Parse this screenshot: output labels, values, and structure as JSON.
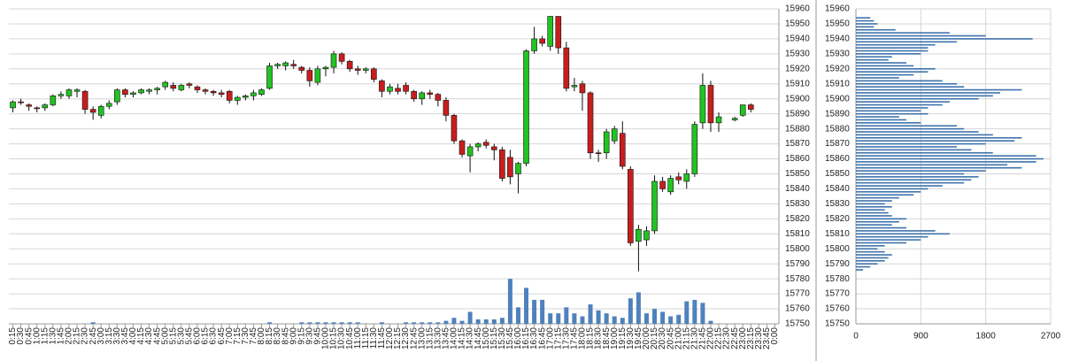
{
  "chart_data": [
    {
      "type": "candlestick",
      "categories": [
        "0:15",
        "0:30",
        "0:45",
        "1:00",
        "1:15",
        "1:30",
        "1:45",
        "2:00",
        "2:15",
        "2:30",
        "2:45",
        "3:00",
        "3:15",
        "3:30",
        "3:45",
        "4:00",
        "4:15",
        "4:30",
        "4:45",
        "5:00",
        "5:15",
        "5:30",
        "5:45",
        "6:00",
        "6:15",
        "6:30",
        "6:45",
        "7:00",
        "7:15",
        "7:30",
        "7:45",
        "8:00",
        "8:15",
        "8:30",
        "8:45",
        "9:00",
        "9:15",
        "9:30",
        "9:45",
        "10:00",
        "10:15",
        "10:30",
        "10:45",
        "11:00",
        "11:15",
        "11:30",
        "11:45",
        "12:00",
        "12:15",
        "12:30",
        "12:45",
        "13:00",
        "13:15",
        "13:30",
        "13:45",
        "14:00",
        "14:15",
        "14:30",
        "14:45",
        "15:00",
        "15:15",
        "15:30",
        "15:45",
        "16:00",
        "16:15",
        "16:30",
        "16:45",
        "17:00",
        "17:15",
        "17:30",
        "17:45",
        "18:00",
        "18:15",
        "18:30",
        "18:45",
        "19:00",
        "19:15",
        "19:30",
        "19:45",
        "20:00",
        "20:15",
        "20:30",
        "20:45",
        "21:00",
        "21:15",
        "21:30",
        "21:45",
        "22:00",
        "22:15",
        "22:30",
        "22:45",
        "23:00",
        "23:15",
        "23:30",
        "23:45",
        "0:00"
      ],
      "open": [
        15894,
        15898,
        15896,
        15894,
        15894,
        15896,
        15902,
        15902,
        15905,
        15905,
        15893,
        15889,
        15895,
        15898,
        15906,
        15903,
        15904,
        15905,
        15906,
        15908,
        15909,
        15906,
        15910,
        15908,
        15906,
        15905,
        15904,
        15905,
        15899,
        15901,
        15902,
        15903,
        15907,
        15922,
        15922,
        15923,
        15921,
        15919,
        15911,
        15920,
        15921,
        15930,
        15925,
        15920,
        15919,
        15920,
        15912,
        15905,
        15907,
        15909,
        15905,
        15900,
        15904,
        15903,
        15899,
        15889,
        15872,
        15862,
        15868,
        15871,
        15868,
        15866,
        15861,
        15850,
        15857,
        15932,
        15940,
        15935,
        15955,
        15934,
        15908,
        15910,
        15904,
        15864,
        15864,
        15872,
        15877,
        15853,
        15805,
        15806,
        15812,
        15845,
        15838,
        15848,
        15845,
        15850,
        15884,
        15909,
        15884,
        null,
        15886,
        15889,
        15896,
        null,
        null,
        null
      ],
      "high": [
        15899,
        15900,
        15897,
        15895,
        15897,
        15903,
        15905,
        15907,
        15907,
        15906,
        15895,
        15896,
        15899,
        15907,
        15907,
        15905,
        15907,
        15907,
        15908,
        15912,
        15911,
        15910,
        15911,
        15909,
        15907,
        15906,
        15906,
        15906,
        15902,
        15903,
        15906,
        15907,
        15924,
        15924,
        15925,
        15926,
        15922,
        15921,
        15922,
        15922,
        15932,
        15931,
        15926,
        15922,
        15921,
        15921,
        15913,
        15910,
        15910,
        15911,
        15906,
        15905,
        15906,
        15904,
        15901,
        15890,
        15873,
        15870,
        15871,
        15873,
        15870,
        15868,
        15866,
        15858,
        15933,
        15948,
        15942,
        15955,
        15955,
        15938,
        15914,
        15912,
        15905,
        15866,
        15880,
        15882,
        15885,
        15855,
        15816,
        15815,
        15849,
        15848,
        15849,
        15851,
        15853,
        15885,
        15917,
        15912,
        15891,
        null,
        15888,
        15896,
        15897,
        null,
        null,
        null
      ],
      "low": [
        15891,
        15896,
        15892,
        15891,
        15892,
        15895,
        15900,
        15900,
        15901,
        15890,
        15886,
        15887,
        15893,
        15896,
        15901,
        15901,
        15903,
        15903,
        15903,
        15906,
        15905,
        15905,
        15907,
        15904,
        15903,
        15902,
        15901,
        15897,
        15896,
        15899,
        15899,
        15902,
        15906,
        15920,
        15919,
        15920,
        15917,
        15908,
        15909,
        15915,
        15917,
        15923,
        15918,
        15916,
        15917,
        15911,
        15901,
        15903,
        15903,
        15903,
        15898,
        15896,
        15900,
        15895,
        15885,
        15870,
        15861,
        15851,
        15865,
        15867,
        15859,
        15845,
        15843,
        15837,
        15855,
        15930,
        15935,
        15932,
        15930,
        15905,
        15905,
        15892,
        15860,
        15858,
        15860,
        15870,
        15853,
        15802,
        15785,
        15802,
        15810,
        15838,
        15836,
        15843,
        15840,
        15848,
        15880,
        15878,
        15878,
        null,
        15885,
        15888,
        15891,
        null,
        null,
        null
      ],
      "close": [
        15898,
        15898,
        15895,
        15894,
        15896,
        15902,
        15903,
        15906,
        15906,
        15893,
        15891,
        15895,
        15897,
        15906,
        15903,
        15904,
        15906,
        15906,
        15907,
        15911,
        15907,
        15909,
        15909,
        15906,
        15905,
        15904,
        15903,
        15899,
        15901,
        15902,
        15904,
        15906,
        15922,
        15923,
        15924,
        15922,
        15919,
        15912,
        15920,
        15921,
        15930,
        15925,
        15920,
        15919,
        15920,
        15913,
        15905,
        15908,
        15905,
        15905,
        15900,
        15904,
        15903,
        15899,
        15889,
        15872,
        15863,
        15868,
        15870,
        15869,
        15866,
        15847,
        15848,
        15857,
        15932,
        15940,
        15937,
        15955,
        15934,
        15907,
        15909,
        15904,
        15864,
        15864,
        15878,
        15880,
        15855,
        15804,
        15813,
        15812,
        15845,
        15840,
        15847,
        15846,
        15850,
        15883,
        15909,
        15884,
        15888,
        null,
        15887,
        15896,
        15893,
        null,
        null,
        null
      ],
      "volume": [
        0,
        0,
        0,
        0,
        0,
        0,
        0,
        0,
        0,
        0,
        1,
        0,
        0,
        0,
        0,
        0,
        0,
        0,
        0,
        0,
        0,
        0,
        0,
        0,
        0,
        0,
        0,
        0,
        0,
        0,
        0,
        0,
        1,
        0,
        0,
        0,
        1,
        1,
        1,
        1,
        1,
        1,
        1,
        1,
        0,
        0,
        1,
        0,
        0,
        1,
        1,
        1,
        1,
        1,
        2,
        4,
        2,
        8,
        3,
        3,
        3,
        4,
        30,
        11,
        24,
        16,
        16,
        7,
        7,
        11,
        7,
        5,
        13,
        9,
        7,
        5,
        4,
        17,
        21,
        7,
        10,
        8,
        5,
        6,
        15,
        16,
        14,
        2,
        0,
        0,
        0,
        0,
        0,
        0,
        0,
        0
      ],
      "up_color": "#22c322",
      "down_color": "#c81e1e",
      "volume_color": "#4f81bd",
      "ylim": [
        15750,
        15960
      ],
      "yticks": [
        15750,
        15760,
        15770,
        15780,
        15790,
        15800,
        15810,
        15820,
        15830,
        15840,
        15850,
        15860,
        15870,
        15880,
        15890,
        15900,
        15910,
        15920,
        15930,
        15940,
        15950,
        15960
      ],
      "grid": true
    },
    {
      "type": "hbar",
      "y": [
        15954,
        15952,
        15950,
        15948,
        15946,
        15944,
        15942,
        15940,
        15938,
        15936,
        15934,
        15932,
        15930,
        15928,
        15926,
        15924,
        15922,
        15920,
        15918,
        15916,
        15914,
        15912,
        15910,
        15908,
        15906,
        15904,
        15902,
        15900,
        15898,
        15896,
        15894,
        15892,
        15890,
        15888,
        15886,
        15884,
        15882,
        15880,
        15878,
        15876,
        15874,
        15872,
        15870,
        15868,
        15866,
        15864,
        15862,
        15860,
        15858,
        15856,
        15854,
        15852,
        15850,
        15848,
        15846,
        15844,
        15842,
        15840,
        15838,
        15836,
        15834,
        15832,
        15830,
        15828,
        15826,
        15824,
        15822,
        15820,
        15818,
        15816,
        15814,
        15812,
        15810,
        15808,
        15806,
        15804,
        15802,
        15800,
        15798,
        15796,
        15794,
        15792,
        15790,
        15788,
        15786
      ],
      "values": [
        200,
        250,
        300,
        250,
        550,
        1300,
        1800,
        2450,
        1400,
        1100,
        1000,
        1000,
        900,
        500,
        450,
        700,
        800,
        1100,
        1000,
        800,
        600,
        1200,
        1400,
        1500,
        2300,
        2000,
        1900,
        1700,
        1300,
        1200,
        1000,
        900,
        1000,
        600,
        700,
        900,
        1400,
        1500,
        1700,
        1900,
        2300,
        2200,
        1800,
        1400,
        1600,
        1900,
        2500,
        2600,
        2500,
        2100,
        2300,
        1800,
        1500,
        1700,
        1600,
        1500,
        1200,
        1000,
        900,
        800,
        600,
        500,
        400,
        500,
        400,
        450,
        500,
        700,
        600,
        500,
        700,
        1100,
        1300,
        1000,
        900,
        700,
        400,
        300,
        400,
        500,
        450,
        400,
        300,
        200,
        100
      ],
      "color": "#3e72ab",
      "xlim": [
        0,
        2700
      ],
      "xticks": [
        0,
        900,
        1800,
        2700
      ],
      "ylim": [
        15750,
        15960
      ],
      "yticks": [
        15750,
        15760,
        15770,
        15780,
        15790,
        15800,
        15810,
        15820,
        15830,
        15840,
        15850,
        15860,
        15870,
        15880,
        15890,
        15900,
        15910,
        15920,
        15930,
        15940,
        15950,
        15960
      ],
      "grid": true
    }
  ]
}
